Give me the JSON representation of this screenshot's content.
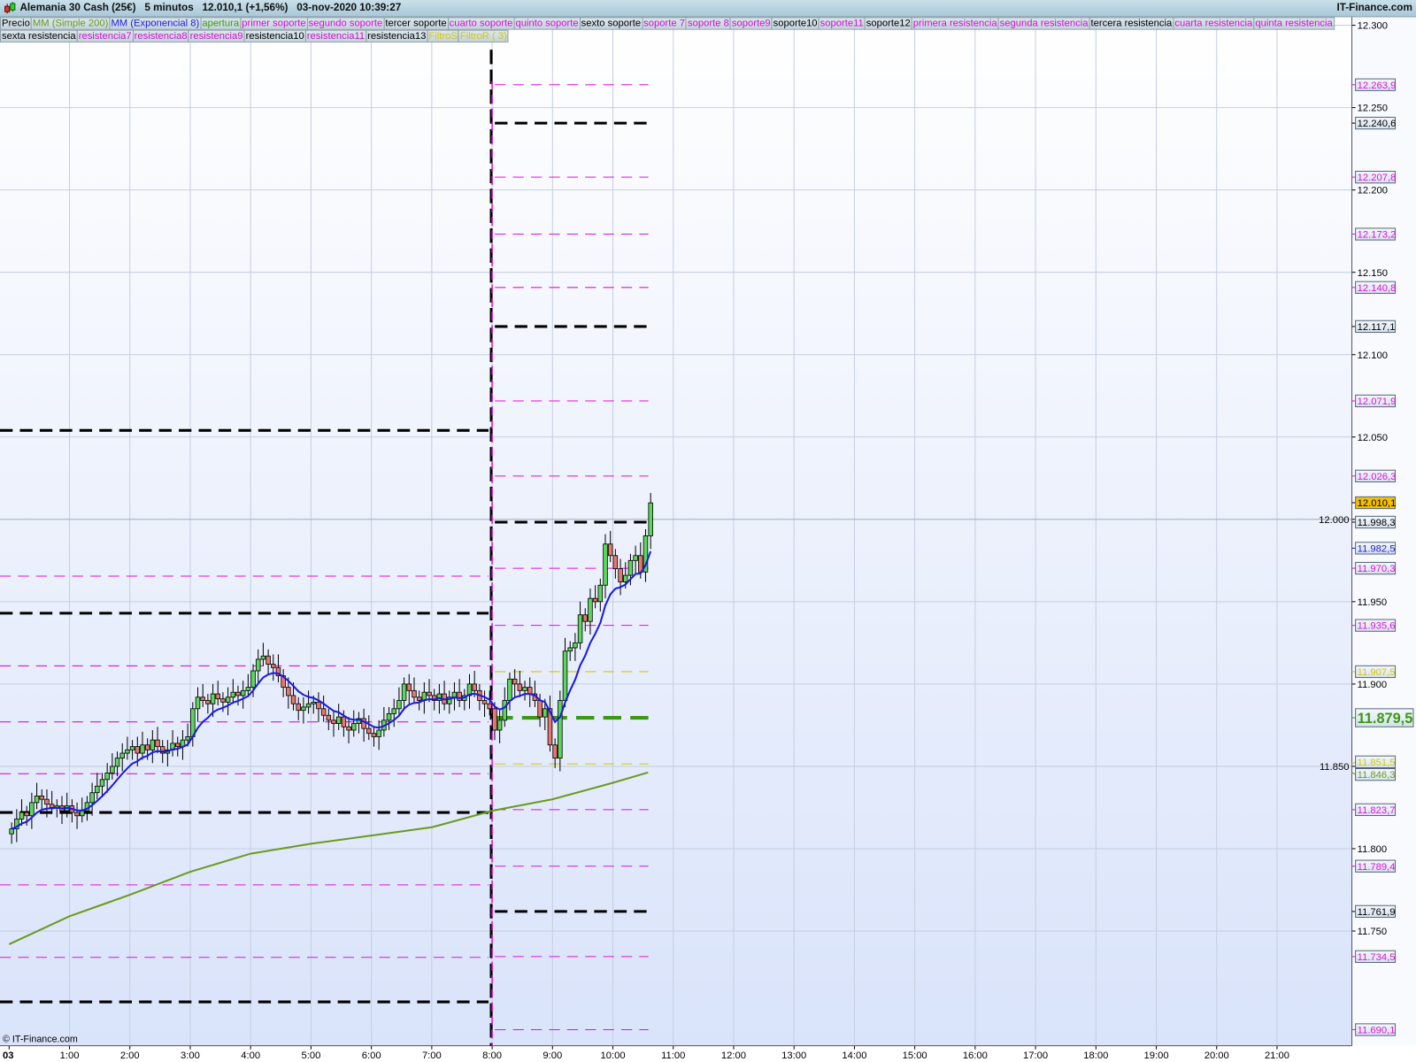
{
  "header": {
    "title": "Alemania 30 Cash (25€)   5 minutos   12.010,1 (+1,56%)   03-nov-2020 10:39:27",
    "brand": "IT-Finance.com",
    "copyright": "© IT-Finance.com"
  },
  "legend_rows": [
    [
      {
        "label": "Precio",
        "color": "#000000"
      },
      {
        "label": "MM (Simple 200)",
        "color": "#6b9a1e"
      },
      {
        "label": "MM (Exponencial 8)",
        "color": "#1a1ae0"
      },
      {
        "label": "apertura",
        "color": "#3a9a10"
      },
      {
        "label": "primer soporte",
        "color": "#d010d0"
      },
      {
        "label": "segundo soporte",
        "color": "#d010d0"
      },
      {
        "label": "tercer soporte",
        "color": "#000000"
      },
      {
        "label": "cuarto soporte",
        "color": "#d010d0"
      },
      {
        "label": "quinto soporte",
        "color": "#d010d0"
      },
      {
        "label": "sexto soporte",
        "color": "#000000"
      },
      {
        "label": "soporte 7",
        "color": "#d010d0"
      },
      {
        "label": "soporte 8",
        "color": "#d010d0"
      },
      {
        "label": "soporte9",
        "color": "#d010d0"
      },
      {
        "label": "soporte10",
        "color": "#000000"
      },
      {
        "label": "soporte11",
        "color": "#d010d0"
      },
      {
        "label": "soporte12",
        "color": "#000000"
      },
      {
        "label": "primera resistencia",
        "color": "#d010d0"
      },
      {
        "label": "segunda resistencia",
        "color": "#d010d0"
      },
      {
        "label": "tercera resistencia",
        "color": "#000000"
      },
      {
        "label": "cuarta resistencia",
        "color": "#d010d0"
      },
      {
        "label": "quinta resistencia",
        "color": "#d010d0"
      }
    ],
    [
      {
        "label": "sexta resistencia",
        "color": "#000000"
      },
      {
        "label": "resistencia7",
        "color": "#d010d0"
      },
      {
        "label": "resistencia8",
        "color": "#d010d0"
      },
      {
        "label": "resistencia9",
        "color": "#d010d0"
      },
      {
        "label": "resistencia10",
        "color": "#000000"
      },
      {
        "label": "resistencia11",
        "color": "#d010d0"
      },
      {
        "label": "resistencia13",
        "color": "#000000"
      },
      {
        "label": "FiltroS",
        "color": "#d4c800"
      },
      {
        "label": "FiltroR ( 3)",
        "color": "#d4c800"
      }
    ]
  ],
  "colors": {
    "up": "#5cd65c",
    "down": "#e8786e",
    "ema": "#1a1ae0",
    "sma": "#6b9a1e",
    "magenta": "#e010e0",
    "black": "#000000",
    "yellow": "#d4c800",
    "green": "#3a9a10",
    "last_price_bg": "#f5c000"
  },
  "chart_data": {
    "type": "candlestick",
    "timeframe": "5 minutos",
    "ylim": [
      11675,
      12310
    ],
    "y_ticks": [
      {
        "value": 12300,
        "label": "12.300"
      },
      {
        "value": 12250,
        "label": "12.250"
      },
      {
        "value": 12200,
        "label": "12.200"
      },
      {
        "value": 12150,
        "label": "12.150"
      },
      {
        "value": 12100,
        "label": "12.100"
      },
      {
        "value": 12050,
        "label": "12.050"
      },
      {
        "value": 12000,
        "label": "12.000"
      },
      {
        "value": 11950,
        "label": "11.950"
      },
      {
        "value": 11900,
        "label": "11.900"
      },
      {
        "value": 11850,
        "label": "11.850"
      },
      {
        "value": 11800,
        "label": "11.800"
      },
      {
        "value": 11750,
        "label": "11.750"
      }
    ],
    "x_ticks": [
      "03",
      "1:00",
      "2:00",
      "3:00",
      "4:00",
      "5:00",
      "6:00",
      "7:00",
      "8:00",
      "9:00",
      "10:00",
      "11:00",
      "12:00",
      "13:00",
      "14:00",
      "15:00",
      "16:00",
      "17:00",
      "18:00",
      "19:00",
      "20:00",
      "21:00"
    ],
    "first_candle_time": "00:00",
    "candle_minutes": 5,
    "close": [
      11812,
      11818,
      11822,
      11820,
      11828,
      11832,
      11830,
      11827,
      11825,
      11826,
      11823,
      11826,
      11822,
      11820,
      11823,
      11828,
      11834,
      11838,
      11842,
      11846,
      11850,
      11855,
      11858,
      11860,
      11862,
      11858,
      11863,
      11860,
      11866,
      11862,
      11858,
      11860,
      11864,
      11862,
      11866,
      11868,
      11885,
      11892,
      11890,
      11888,
      11894,
      11891,
      11889,
      11892,
      11895,
      11893,
      11896,
      11898,
      11908,
      11915,
      11917,
      11912,
      11910,
      11905,
      11898,
      11893,
      11888,
      11884,
      11886,
      11888,
      11889,
      11885,
      11881,
      11878,
      11876,
      11880,
      11874,
      11872,
      11876,
      11879,
      11873,
      11870,
      11868,
      11872,
      11878,
      11882,
      11885,
      11890,
      11900,
      11896,
      11892,
      11890,
      11895,
      11893,
      11890,
      11894,
      11888,
      11892,
      11895,
      11890,
      11893,
      11900,
      11896,
      11890,
      11888,
      11885,
      11872,
      11878,
      11890,
      11903,
      11900,
      11896,
      11898,
      11894,
      11890,
      11880,
      11885,
      11863,
      11855,
      11890,
      11920,
      11922,
      11925,
      11942,
      11938,
      11952,
      11950,
      11960,
      11985,
      11978,
      11970,
      11962,
      11966,
      11975,
      11978,
      11968,
      11990,
      12010
    ],
    "sma200": {
      "name": "MM (Simple 200)",
      "times": [
        "0:00",
        "1:00",
        "2:00",
        "3:00",
        "4:00",
        "5:00",
        "6:00",
        "7:00",
        "8:00",
        "9:00",
        "10:00",
        "10:35"
      ],
      "values": [
        11742,
        11759,
        11772,
        11786,
        11797,
        11803,
        11808,
        11813,
        11823,
        11830,
        11840,
        11846.3
      ]
    },
    "ema8": {
      "name": "MM (Exponencial 8)",
      "last": 11982.5
    },
    "session_line_time": "8:00",
    "prev_session_levels": [
      {
        "value": 12054,
        "color": "black",
        "weight": "heavy"
      },
      {
        "value": 11943,
        "color": "black",
        "weight": "heavy"
      },
      {
        "value": 11822,
        "color": "black",
        "weight": "heavy"
      },
      {
        "value": 11707,
        "color": "black",
        "weight": "heavy"
      },
      {
        "value": 11965.5,
        "color": "magenta",
        "weight": "thin"
      },
      {
        "value": 11911,
        "color": "magenta",
        "weight": "thin"
      },
      {
        "value": 11877,
        "color": "magenta",
        "weight": "thin"
      },
      {
        "value": 11845.5,
        "color": "magenta",
        "weight": "thin"
      },
      {
        "value": 11778,
        "color": "magenta",
        "weight": "thin"
      },
      {
        "value": 11734,
        "color": "magenta",
        "weight": "thin"
      }
    ],
    "levels": [
      {
        "value": 12263.9,
        "label": "12.263,9",
        "color": "magenta",
        "weight": "thin"
      },
      {
        "value": 12240.6,
        "label": "12.240,6",
        "color": "black",
        "weight": "heavy"
      },
      {
        "value": 12207.8,
        "label": "12.207,8",
        "color": "magenta",
        "weight": "thin"
      },
      {
        "value": 12173.2,
        "label": "12.173,2",
        "color": "magenta",
        "weight": "thin"
      },
      {
        "value": 12140.8,
        "label": "12.140,8",
        "color": "magenta",
        "weight": "thin"
      },
      {
        "value": 12117.1,
        "label": "12.117,1",
        "color": "black",
        "weight": "heavy"
      },
      {
        "value": 12071.9,
        "label": "12.071,9",
        "color": "magenta",
        "weight": "thin"
      },
      {
        "value": 12026.3,
        "label": "12.026,3",
        "color": "magenta",
        "weight": "thin"
      },
      {
        "value": 11998.3,
        "label": "11.998,3",
        "color": "black",
        "weight": "heavy"
      },
      {
        "value": 11970.3,
        "label": "11.970,3",
        "color": "magenta",
        "weight": "thin"
      },
      {
        "value": 11935.6,
        "label": "11.935,6",
        "color": "magenta",
        "weight": "thin"
      },
      {
        "value": 11907.5,
        "label": "11.907,5",
        "color": "yellow",
        "weight": "thin"
      },
      {
        "value": 11879.5,
        "label": "11.879,5",
        "color": "green",
        "weight": "bold"
      },
      {
        "value": 11851.5,
        "label": "11.851,5",
        "color": "yellow",
        "weight": "thin"
      },
      {
        "value": 11823.7,
        "label": "11.823,7",
        "color": "magenta",
        "weight": "thin"
      },
      {
        "value": 11789.4,
        "label": "11.789,4",
        "color": "magenta",
        "weight": "thin"
      },
      {
        "value": 11761.9,
        "label": "11.761,9",
        "color": "black",
        "weight": "heavy"
      },
      {
        "value": 11734.5,
        "label": "11.734,5",
        "color": "magenta",
        "weight": "thin"
      },
      {
        "value": 11690.1,
        "label": "11.690,1",
        "color": "magenta",
        "weight": "thin"
      }
    ],
    "axis_markers": [
      {
        "value": 12010.1,
        "label": "12.010,1",
        "color": "last"
      },
      {
        "value": 11982.5,
        "label": "11.982,5",
        "color": "ema"
      },
      {
        "value": 11846.3,
        "label": "11.846,3",
        "color": "sma"
      }
    ]
  }
}
